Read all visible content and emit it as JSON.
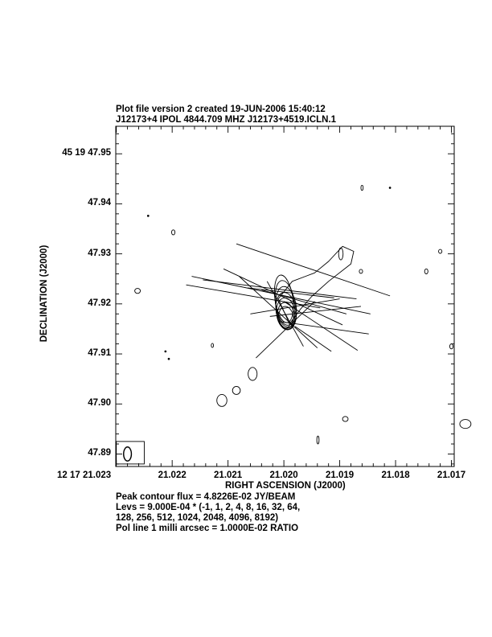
{
  "header": {
    "line1": "Plot file version 2  created 19-JUN-2006 15:40:12",
    "line2": "J12173+4  IPOL  4844.709 MHZ  J12173+4519.ICLN.1"
  },
  "footer": {
    "line1": "Peak contour flux =  4.8226E-02 JY/BEAM",
    "line2": "Levs = 9.000E-04 * (-1, 1, 2, 4, 8, 16, 32, 64,",
    "line3": "128, 256, 512, 1024, 2048, 4096, 8192)",
    "line4": "Pol line 1 milli arcsec =  1.0000E-02 RATIO"
  },
  "chart_data": {
    "type": "contour",
    "xlabel": "RIGHT ASCENSION (J2000)",
    "ylabel": "DECLINATION (J2000)",
    "x_ticks": [
      {
        "value": 21.023,
        "label": "12 17 21.023"
      },
      {
        "value": 21.022,
        "label": "21.022"
      },
      {
        "value": 21.021,
        "label": "21.021"
      },
      {
        "value": 21.02,
        "label": "21.020"
      },
      {
        "value": 21.019,
        "label": "21.019"
      },
      {
        "value": 21.018,
        "label": "21.018"
      },
      {
        "value": 21.017,
        "label": "21.017"
      }
    ],
    "y_ticks": [
      {
        "value": 47.95,
        "label": "45 19 47.95"
      },
      {
        "value": 47.94,
        "label": "47.94"
      },
      {
        "value": 47.93,
        "label": "47.93"
      },
      {
        "value": 47.92,
        "label": "47.92"
      },
      {
        "value": 47.91,
        "label": "47.91"
      },
      {
        "value": 47.9,
        "label": "47.90"
      },
      {
        "value": 47.89,
        "label": "47.89"
      }
    ],
    "xlim": [
      21.02301,
      21.01695
    ],
    "ylim": [
      47.8875,
      47.9555
    ],
    "contour_levels_base": 0.0009,
    "contour_levels_multipliers": [
      -1,
      1,
      2,
      4,
      8,
      16,
      32,
      64,
      128,
      256,
      512,
      1024,
      2048,
      4096,
      8192
    ],
    "peak_flux_jy_per_beam": 0.048226,
    "core": {
      "x": 21.01996,
      "y": 47.918
    },
    "core_contours": [
      {
        "rx": 0.00016,
        "ry": 0.0048,
        "dx": 4e-05,
        "dy": 0.003
      },
      {
        "rx": 0.00017,
        "ry": 0.0045,
        "dx": 2e-05,
        "dy": 0.0022
      },
      {
        "rx": 0.00018,
        "ry": 0.0041,
        "dx": 0.0,
        "dy": 0.0014
      },
      {
        "rx": 0.00018,
        "ry": 0.0037,
        "dx": 0.0,
        "dy": 0.0006
      },
      {
        "rx": 0.00017,
        "ry": 0.0032,
        "dx": 0.0,
        "dy": 0.0
      },
      {
        "rx": 0.00015,
        "ry": 0.0027,
        "dx": 0.0,
        "dy": -0.0004
      },
      {
        "rx": 0.00013,
        "ry": 0.0022,
        "dx": 0.0,
        "dy": -0.0007
      }
    ],
    "jet_contour": [
      [
        21.0201,
        47.921
      ],
      [
        21.01985,
        47.9245
      ],
      [
        21.01945,
        47.9262
      ],
      [
        21.0192,
        47.9285
      ],
      [
        21.01895,
        47.9315
      ],
      [
        21.01875,
        47.9305
      ],
      [
        21.0188,
        47.928
      ],
      [
        21.0192,
        47.9245
      ],
      [
        21.0195,
        47.9215
      ],
      [
        21.0197,
        47.919
      ],
      [
        21.0199,
        47.916
      ]
    ],
    "blobs": [
      {
        "x": 21.01898,
        "y": 47.93,
        "rx": 4e-05,
        "ry": 0.0012
      },
      {
        "x": 21.02056,
        "y": 47.906,
        "rx": 8e-05,
        "ry": 0.0013
      },
      {
        "x": 21.02085,
        "y": 47.9027,
        "rx": 7e-05,
        "ry": 0.0008
      },
      {
        "x": 21.02111,
        "y": 47.9007,
        "rx": 9e-05,
        "ry": 0.0012
      },
      {
        "x": 21.01939,
        "y": 47.8928,
        "rx": 2e-05,
        "ry": 0.0008
      },
      {
        "x": 21.0189,
        "y": 47.897,
        "rx": 5e-05,
        "ry": 0.0005
      },
      {
        "x": 21.01745,
        "y": 47.9265,
        "rx": 3e-05,
        "ry": 0.0005
      },
      {
        "x": 21.0172,
        "y": 47.9305,
        "rx": 3e-05,
        "ry": 0.0004
      },
      {
        "x": 21.017,
        "y": 47.9115,
        "rx": 3e-05,
        "ry": 0.0005
      },
      {
        "x": 21.01675,
        "y": 47.896,
        "rx": 0.0001,
        "ry": 0.0009
      },
      {
        "x": 21.0186,
        "y": 47.9432,
        "rx": 2e-05,
        "ry": 0.0005
      },
      {
        "x": 21.02198,
        "y": 47.9343,
        "rx": 3e-05,
        "ry": 0.0005
      },
      {
        "x": 21.02262,
        "y": 47.9226,
        "rx": 5e-05,
        "ry": 0.0005
      },
      {
        "x": 21.01862,
        "y": 47.9265,
        "rx": 3e-05,
        "ry": 0.0004
      },
      {
        "x": 21.02128,
        "y": 47.9117,
        "rx": 2e-05,
        "ry": 0.0004
      }
    ],
    "specks": [
      {
        "x": 21.02243,
        "y": 47.9376
      },
      {
        "x": 21.0181,
        "y": 47.9432
      },
      {
        "x": 21.02212,
        "y": 47.9105
      },
      {
        "x": 21.02206,
        "y": 47.909
      }
    ],
    "pol_vectors": [
      {
        "x1": 21.02085,
        "y1": 47.932,
        "x2": 21.0181,
        "y2": 47.9216
      },
      {
        "x1": 21.02165,
        "y1": 47.9255,
        "x2": 21.01845,
        "y2": 47.918
      },
      {
        "x1": 21.02108,
        "y1": 47.927,
        "x2": 21.01895,
        "y2": 47.9158
      },
      {
        "x1": 21.02145,
        "y1": 47.9248,
        "x2": 21.0187,
        "y2": 47.921
      },
      {
        "x1": 21.02175,
        "y1": 47.9238,
        "x2": 21.01935,
        "y2": 47.9192
      },
      {
        "x1": 21.02065,
        "y1": 47.9232,
        "x2": 21.0191,
        "y2": 47.9212
      },
      {
        "x1": 21.0204,
        "y1": 47.9228,
        "x2": 21.01888,
        "y2": 47.918
      },
      {
        "x1": 21.0208,
        "y1": 47.9255,
        "x2": 21.0194,
        "y2": 47.9112
      },
      {
        "x1": 21.0203,
        "y1": 47.9245,
        "x2": 21.01965,
        "y2": 47.9115
      },
      {
        "x1": 21.01945,
        "y1": 47.9205,
        "x2": 21.0205,
        "y2": 47.9092
      },
      {
        "x1": 21.02,
        "y1": 47.9205,
        "x2": 21.01868,
        "y2": 47.9107
      },
      {
        "x1": 21.02025,
        "y1": 47.9175,
        "x2": 21.01862,
        "y2": 47.9195
      },
      {
        "x1": 21.0206,
        "y1": 47.918,
        "x2": 21.019,
        "y2": 47.921
      },
      {
        "x1": 21.0201,
        "y1": 47.9165,
        "x2": 21.01848,
        "y2": 47.914
      },
      {
        "x1": 21.0198,
        "y1": 47.9155,
        "x2": 21.01915,
        "y2": 47.9105
      }
    ],
    "beam": {
      "x": 21.0228,
      "y": 47.89,
      "rx": 7e-05,
      "ry": 0.0014
    },
    "beam_box": {
      "x1": 21.023,
      "y1": 47.888,
      "x2": 21.0225,
      "y2": 47.8925
    }
  }
}
